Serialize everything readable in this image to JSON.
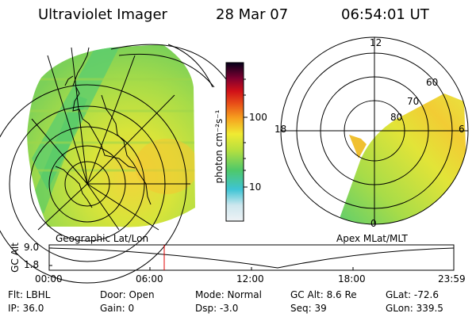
{
  "header": {
    "instrument": "Ultraviolet Imager",
    "date": "28 Mar 07",
    "time": "06:54:01 UT"
  },
  "colorbar": {
    "unit_label": "photon cm⁻²s⁻¹",
    "ticks": [
      "100",
      "10"
    ],
    "scale": "log",
    "colors": [
      "#e9eef2",
      "#cfe8ee",
      "#56c9d8",
      "#18b8c4",
      "#4ec86a",
      "#8ad24a",
      "#c9e43a",
      "#f0e832",
      "#f6c020",
      "#f0901c",
      "#e85018",
      "#d01018",
      "#900018",
      "#5a0030",
      "#2a0040",
      "#05001a"
    ]
  },
  "geo_panel": {
    "label": "Geographic Lat/Lon"
  },
  "apex_panel": {
    "label": "Apex MLat/MLT",
    "mlt_labels": [
      "12",
      "18",
      "6",
      "0"
    ],
    "mlat_labels": [
      "60",
      "70",
      "80"
    ]
  },
  "altitude_plot": {
    "ylabel": "GC Alt",
    "y_ticks": [
      "9.0",
      "1.8"
    ],
    "x_ticks": [
      "00:00",
      "06:00",
      "12:00",
      "18:00",
      "23:59"
    ],
    "marker_time": "06:54"
  },
  "status": {
    "flt": "Flt: LBHL",
    "ip": "IP: 36.0",
    "door": "Door: Open",
    "gain": "Gain:  0",
    "mode": "Mode: Normal",
    "dsp": "Dsp:   -3.0",
    "gc_alt": "GC Alt: 8.6 Re",
    "seq": "Seq: 39",
    "glat": "GLat:  -72.6",
    "glon": "GLon: 339.5"
  }
}
